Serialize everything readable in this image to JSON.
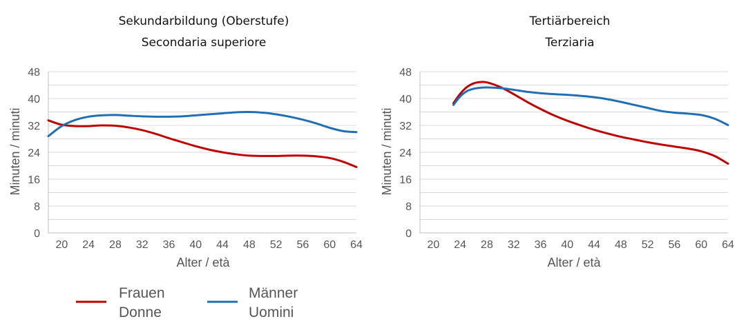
{
  "chart_data": [
    {
      "type": "line",
      "title": [
        "Sekundarbildung (Oberstufe)",
        "Secondaria superiore"
      ],
      "xlabel": "Alter / età",
      "ylabel": "Minuten / minuti",
      "xlim": [
        18,
        64
      ],
      "ylim": [
        0,
        48
      ],
      "xticks": [
        20,
        24,
        28,
        32,
        36,
        40,
        44,
        48,
        52,
        56,
        60,
        64
      ],
      "yticks": [
        0,
        8,
        16,
        24,
        32,
        40,
        48
      ],
      "grid": true,
      "series": [
        {
          "name": "Frauen / Donne",
          "color": "#c00000",
          "x": [
            18,
            20,
            22,
            24,
            26,
            28,
            30,
            32,
            34,
            36,
            38,
            40,
            42,
            44,
            46,
            48,
            50,
            52,
            54,
            56,
            58,
            60,
            62,
            64
          ],
          "y": [
            33.5,
            32.2,
            31.8,
            31.8,
            32.0,
            31.9,
            31.4,
            30.6,
            29.5,
            28.2,
            27.0,
            25.8,
            24.8,
            24.0,
            23.4,
            23.0,
            22.9,
            22.9,
            23.0,
            23.0,
            22.8,
            22.3,
            21.2,
            19.6
          ]
        },
        {
          "name": "Männer / Uomini",
          "color": "#1f6fb5",
          "x": [
            18,
            20,
            22,
            24,
            26,
            28,
            30,
            32,
            34,
            36,
            38,
            40,
            42,
            44,
            46,
            48,
            50,
            52,
            54,
            56,
            58,
            60,
            62,
            64
          ],
          "y": [
            28.8,
            31.8,
            33.6,
            34.6,
            35.0,
            35.1,
            34.9,
            34.7,
            34.6,
            34.6,
            34.7,
            35.0,
            35.3,
            35.6,
            35.9,
            36.0,
            35.8,
            35.3,
            34.6,
            33.7,
            32.6,
            31.3,
            30.3,
            30.0
          ]
        }
      ]
    },
    {
      "type": "line",
      "title": [
        "Tertiärbereich",
        "Terziaria"
      ],
      "xlabel": "Alter / età",
      "ylabel": "Minuten / minuti",
      "xlim": [
        18,
        64
      ],
      "ylim": [
        0,
        48
      ],
      "xticks": [
        20,
        24,
        28,
        32,
        36,
        40,
        44,
        48,
        52,
        56,
        60,
        64
      ],
      "yticks": [
        0,
        8,
        16,
        24,
        32,
        40,
        48
      ],
      "grid": true,
      "series": [
        {
          "name": "Frauen / Donne",
          "color": "#c00000",
          "x": [
            23,
            24,
            25,
            26,
            27,
            28,
            30,
            32,
            34,
            36,
            38,
            40,
            42,
            44,
            46,
            48,
            50,
            52,
            54,
            56,
            58,
            60,
            62,
            64
          ],
          "y": [
            38.6,
            41.4,
            43.4,
            44.5,
            44.9,
            44.8,
            43.4,
            41.3,
            39.0,
            36.9,
            35.0,
            33.4,
            32.0,
            30.7,
            29.6,
            28.6,
            27.8,
            27.0,
            26.3,
            25.7,
            25.1,
            24.3,
            22.9,
            20.6
          ]
        },
        {
          "name": "Männer / Uomini",
          "color": "#1f6fb5",
          "x": [
            23,
            24,
            25,
            26,
            27,
            28,
            30,
            32,
            34,
            36,
            38,
            40,
            42,
            44,
            46,
            48,
            50,
            52,
            54,
            56,
            58,
            60,
            62,
            64
          ],
          "y": [
            38.1,
            40.6,
            42.2,
            42.9,
            43.2,
            43.3,
            43.1,
            42.6,
            42.0,
            41.6,
            41.3,
            41.1,
            40.8,
            40.4,
            39.8,
            39.0,
            38.1,
            37.2,
            36.3,
            35.8,
            35.5,
            35.1,
            34.0,
            32.1
          ]
        }
      ]
    }
  ],
  "legend": {
    "position": "bottom-left",
    "items": [
      {
        "line1": "Frauen",
        "line2": "Donne",
        "color": "#c00000"
      },
      {
        "line1": "Männer",
        "line2": "Uomini",
        "color": "#1f6fb5"
      }
    ]
  }
}
